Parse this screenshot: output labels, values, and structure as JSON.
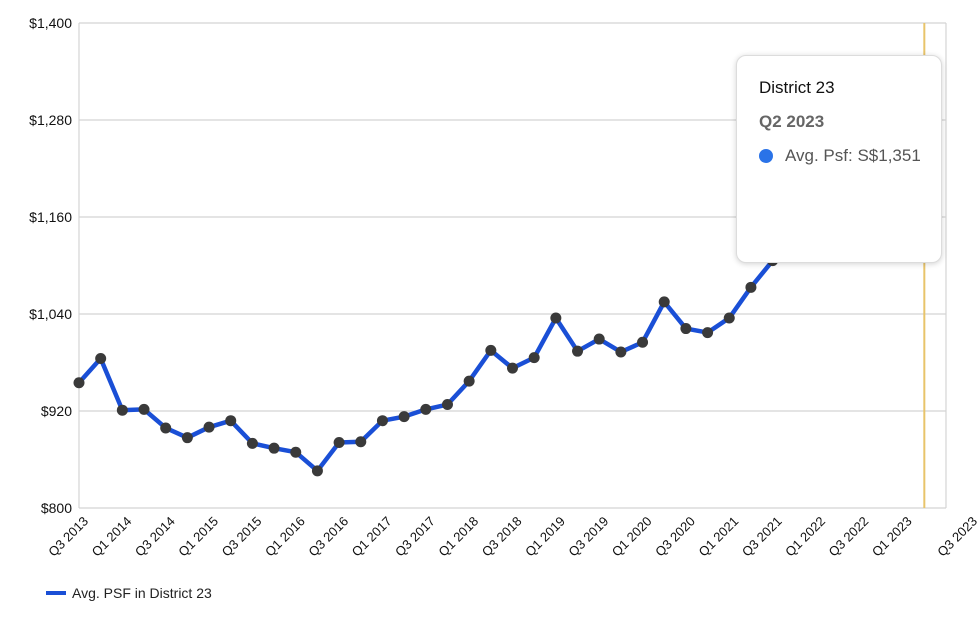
{
  "chart_data": {
    "type": "line",
    "ylim": [
      800,
      1400
    ],
    "y_ticks": [
      "$800",
      "$920",
      "$1,040",
      "$1,160",
      "$1,280",
      "$1,400"
    ],
    "y_tick_values": [
      800,
      920,
      1040,
      1160,
      1280,
      1400
    ],
    "x_tick_labels": [
      "Q3 2013",
      "Q1 2014",
      "Q3 2014",
      "Q1 2015",
      "Q3 2015",
      "Q1 2016",
      "Q3 2016",
      "Q1 2017",
      "Q3 2017",
      "Q1 2018",
      "Q3 2018",
      "Q1 2019",
      "Q3 2019",
      "Q1 2020",
      "Q3 2020",
      "Q1 2021",
      "Q3 2021",
      "Q1 2022",
      "Q3 2022",
      "Q1 2023",
      "Q3 2023"
    ],
    "quarters": [
      "Q3 2013",
      "Q4 2013",
      "Q1 2014",
      "Q2 2014",
      "Q3 2014",
      "Q4 2014",
      "Q1 2015",
      "Q2 2015",
      "Q3 2015",
      "Q4 2015",
      "Q1 2016",
      "Q2 2016",
      "Q3 2016",
      "Q4 2016",
      "Q1 2017",
      "Q2 2017",
      "Q3 2017",
      "Q4 2017",
      "Q1 2018",
      "Q2 2018",
      "Q3 2018",
      "Q4 2018",
      "Q1 2019",
      "Q2 2019",
      "Q3 2019",
      "Q4 2019",
      "Q1 2020",
      "Q2 2020",
      "Q3 2020",
      "Q4 2020",
      "Q1 2021",
      "Q2 2021",
      "Q3 2021",
      "Q4 2021",
      "Q1 2022",
      "Q2 2022",
      "Q3 2022",
      "Q4 2022",
      "Q1 2023",
      "Q2 2023"
    ],
    "series": [
      {
        "name": "Avg. PSF in District 23",
        "values": [
          955,
          985,
          921,
          922,
          899,
          887,
          900,
          908,
          880,
          874,
          869,
          846,
          881,
          882,
          908,
          913,
          922,
          928,
          957,
          995,
          973,
          986,
          1035,
          994,
          1009,
          993,
          1005,
          1055,
          1022,
          1017,
          1035,
          1073,
          1106,
          null,
          null,
          null,
          null,
          null,
          null,
          1351
        ]
      }
    ],
    "highlight_index": 39,
    "legend_position": "bottom-left",
    "grid": true
  },
  "tooltip": {
    "title": "District 23",
    "period": "Q2 2023",
    "row_label": "Avg. Psf: S$1,351"
  },
  "colors": {
    "line": "#1a4fd6",
    "marker": "#3a3a3a",
    "grid": "#d4d4d4",
    "highlight_line": "#e8c46a",
    "tooltip_dot": "#2a73e8"
  }
}
